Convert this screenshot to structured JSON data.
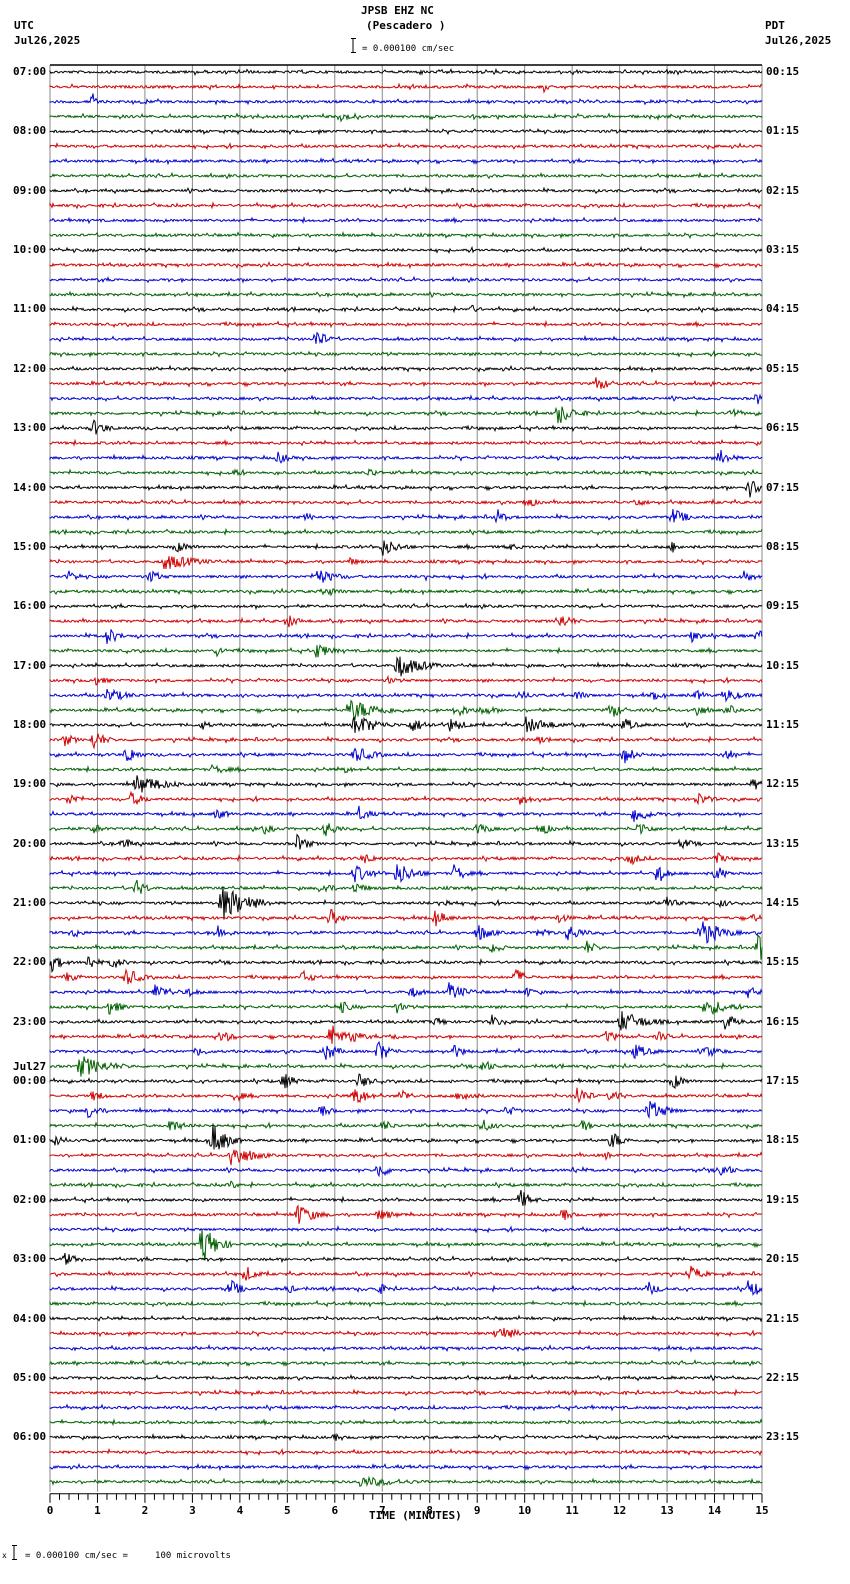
{
  "header": {
    "station": "JPSB EHZ NC",
    "location": "(Pescadero )",
    "scale_text": "= 0.000100 cm/sec",
    "left_tz": "UTC",
    "left_date": "Jul26,2025",
    "right_tz": "PDT",
    "right_date": "Jul26,2025"
  },
  "footer": {
    "scale_note": "= 0.000100 cm/sec =     100 microvolts",
    "scale_prefix": "x"
  },
  "chart_data": {
    "type": "line",
    "title": "JPSB EHZ NC (Pescadero )",
    "xlabel": "TIME (MINUTES)",
    "ylabel": "",
    "xlim": [
      0,
      15
    ],
    "x_ticks": [
      "0",
      "1",
      "2",
      "3",
      "4",
      "5",
      "6",
      "7",
      "8",
      "9",
      "10",
      "11",
      "12",
      "13",
      "14",
      "15"
    ],
    "trace_colors": [
      "#000000",
      "#d00000",
      "#0000d0",
      "#006000"
    ],
    "traces_per_hour": 4,
    "num_traces": 96,
    "left_hour_labels": [
      "07:00",
      "08:00",
      "09:00",
      "10:00",
      "11:00",
      "12:00",
      "13:00",
      "14:00",
      "15:00",
      "16:00",
      "17:00",
      "18:00",
      "19:00",
      "20:00",
      "21:00",
      "22:00",
      "23:00",
      "00:00",
      "01:00",
      "02:00",
      "03:00",
      "04:00",
      "05:00",
      "06:00"
    ],
    "left_date_change": {
      "label": "Jul27",
      "at_index": 17
    },
    "right_hour_labels": [
      "00:15",
      "01:15",
      "02:15",
      "03:15",
      "04:15",
      "05:15",
      "06:15",
      "07:15",
      "08:15",
      "09:15",
      "10:15",
      "11:15",
      "12:15",
      "13:15",
      "14:15",
      "15:15",
      "16:15",
      "17:15",
      "18:15",
      "19:15",
      "20:15",
      "21:15",
      "22:15",
      "23:15"
    ],
    "events": [
      [
        1,
        10.4,
        0.1,
        6
      ],
      [
        2,
        0.9,
        0.05,
        10
      ],
      [
        3,
        6.1,
        0.3,
        6
      ],
      [
        16,
        8.8,
        0.25,
        7
      ],
      [
        18,
        5.6,
        0.25,
        12
      ],
      [
        21,
        11.5,
        0.4,
        8
      ],
      [
        22,
        14.9,
        0.2,
        8
      ],
      [
        23,
        10.7,
        0.5,
        12
      ],
      [
        23,
        14.3,
        0.3,
        7
      ],
      [
        24,
        0.9,
        0.4,
        9
      ],
      [
        26,
        4.8,
        0.3,
        7
      ],
      [
        26,
        14.1,
        0.3,
        10
      ],
      [
        27,
        3.8,
        0.3,
        6
      ],
      [
        27,
        6.7,
        0.3,
        6
      ],
      [
        28,
        14.7,
        0.4,
        12
      ],
      [
        29,
        10.0,
        0.3,
        8
      ],
      [
        29,
        12.3,
        0.3,
        6
      ],
      [
        30,
        5.4,
        0.2,
        5
      ],
      [
        30,
        9.4,
        0.2,
        10
      ],
      [
        30,
        13.1,
        0.4,
        10
      ],
      [
        32,
        2.6,
        0.5,
        7
      ],
      [
        32,
        7.0,
        0.5,
        10
      ],
      [
        32,
        9.6,
        0.4,
        5
      ],
      [
        32,
        13.1,
        0.2,
        7
      ],
      [
        33,
        2.4,
        1.0,
        9
      ],
      [
        33,
        6.3,
        0.3,
        5
      ],
      [
        34,
        0.4,
        0.3,
        6
      ],
      [
        34,
        2.1,
        0.3,
        8
      ],
      [
        34,
        5.6,
        0.6,
        9
      ],
      [
        34,
        7.9,
        0.2,
        5
      ],
      [
        34,
        14.6,
        0.3,
        8
      ],
      [
        35,
        5.8,
        0.4,
        6
      ],
      [
        37,
        5.0,
        0.3,
        8
      ],
      [
        37,
        10.7,
        0.4,
        9
      ],
      [
        38,
        1.2,
        0.3,
        10
      ],
      [
        38,
        13.5,
        0.3,
        7
      ],
      [
        38,
        14.9,
        0.2,
        8
      ],
      [
        39,
        3.5,
        0.3,
        6
      ],
      [
        39,
        5.6,
        0.4,
        9
      ],
      [
        40,
        7.3,
        0.7,
        14
      ],
      [
        41,
        0.9,
        0.4,
        6
      ],
      [
        41,
        7.1,
        0.2,
        5
      ],
      [
        42,
        1.2,
        0.6,
        8
      ],
      [
        42,
        9.9,
        0.3,
        6
      ],
      [
        42,
        11.1,
        0.2,
        7
      ],
      [
        42,
        12.7,
        0.3,
        5
      ],
      [
        42,
        13.6,
        0.3,
        6
      ],
      [
        42,
        14.2,
        0.5,
        8
      ],
      [
        43,
        6.3,
        1.0,
        12
      ],
      [
        43,
        8.5,
        0.5,
        8
      ],
      [
        43,
        9.1,
        0.4,
        6
      ],
      [
        43,
        11.8,
        0.3,
        10
      ],
      [
        43,
        13.6,
        0.3,
        8
      ],
      [
        43,
        14.3,
        0.2,
        6
      ],
      [
        44,
        3.2,
        0.2,
        6
      ],
      [
        44,
        6.4,
        0.7,
        12
      ],
      [
        44,
        7.6,
        0.5,
        8
      ],
      [
        44,
        8.4,
        0.5,
        8
      ],
      [
        44,
        10.0,
        0.8,
        9
      ],
      [
        44,
        12.1,
        0.3,
        8
      ],
      [
        45,
        0.3,
        0.3,
        7
      ],
      [
        45,
        0.9,
        0.3,
        12
      ],
      [
        45,
        10.3,
        0.2,
        5
      ],
      [
        46,
        1.6,
        0.3,
        11
      ],
      [
        46,
        6.4,
        0.6,
        9
      ],
      [
        46,
        12.1,
        0.3,
        10
      ],
      [
        46,
        14.2,
        0.3,
        8
      ],
      [
        47,
        3.4,
        0.6,
        5
      ],
      [
        47,
        6.2,
        0.2,
        5
      ],
      [
        48,
        1.8,
        0.9,
        11
      ],
      [
        48,
        14.8,
        0.3,
        7
      ],
      [
        49,
        0.4,
        0.3,
        7
      ],
      [
        49,
        1.7,
        0.4,
        8
      ],
      [
        49,
        9.9,
        0.3,
        7
      ],
      [
        49,
        13.6,
        0.4,
        8
      ],
      [
        50,
        3.5,
        0.3,
        7
      ],
      [
        50,
        6.5,
        0.3,
        9
      ],
      [
        50,
        12.3,
        0.4,
        11
      ],
      [
        51,
        0.9,
        0.3,
        6
      ],
      [
        51,
        4.5,
        0.3,
        6
      ],
      [
        51,
        5.8,
        0.3,
        10
      ],
      [
        51,
        9.0,
        0.3,
        8
      ],
      [
        51,
        10.3,
        0.3,
        9
      ],
      [
        51,
        12.4,
        0.3,
        9
      ],
      [
        52,
        1.5,
        0.3,
        8
      ],
      [
        52,
        5.2,
        0.3,
        10
      ],
      [
        52,
        13.3,
        0.3,
        7
      ],
      [
        53,
        6.6,
        0.4,
        6
      ],
      [
        53,
        12.2,
        0.3,
        8
      ],
      [
        53,
        14.0,
        0.3,
        8
      ],
      [
        54,
        6.4,
        0.5,
        10
      ],
      [
        54,
        7.3,
        0.5,
        13
      ],
      [
        54,
        8.5,
        0.3,
        10
      ],
      [
        54,
        12.8,
        0.2,
        14
      ],
      [
        54,
        14.0,
        0.3,
        10
      ],
      [
        55,
        1.8,
        0.3,
        10
      ],
      [
        55,
        5.7,
        0.3,
        8
      ],
      [
        55,
        6.4,
        0.3,
        8
      ],
      [
        56,
        3.6,
        0.8,
        20
      ],
      [
        56,
        8.2,
        0.4,
        6
      ],
      [
        56,
        12.9,
        0.3,
        10
      ],
      [
        56,
        14.1,
        0.3,
        5
      ],
      [
        57,
        5.9,
        0.3,
        10
      ],
      [
        57,
        8.1,
        0.3,
        10
      ],
      [
        57,
        10.7,
        0.3,
        6
      ],
      [
        57,
        14.8,
        0.3,
        5
      ],
      [
        58,
        0.5,
        0.2,
        7
      ],
      [
        58,
        3.5,
        0.3,
        10
      ],
      [
        58,
        9.0,
        0.4,
        10
      ],
      [
        58,
        10.3,
        0.3,
        7
      ],
      [
        58,
        10.9,
        0.4,
        10
      ],
      [
        58,
        13.7,
        0.6,
        15
      ],
      [
        59,
        9.3,
        0.3,
        7
      ],
      [
        59,
        11.3,
        0.3,
        8
      ],
      [
        59,
        14.9,
        0.3,
        18
      ],
      [
        60,
        0.0,
        0.3,
        11
      ],
      [
        60,
        0.8,
        0.2,
        10
      ],
      [
        60,
        1.3,
        0.3,
        8
      ],
      [
        61,
        0.3,
        0.3,
        7
      ],
      [
        61,
        1.6,
        0.4,
        10
      ],
      [
        61,
        5.3,
        0.3,
        8
      ],
      [
        61,
        9.8,
        0.3,
        10
      ],
      [
        62,
        2.2,
        0.5,
        9
      ],
      [
        62,
        2.9,
        0.3,
        6
      ],
      [
        62,
        7.6,
        0.3,
        7
      ],
      [
        62,
        8.4,
        0.5,
        10
      ],
      [
        62,
        10.0,
        0.3,
        6
      ],
      [
        62,
        14.7,
        0.3,
        7
      ],
      [
        63,
        1.2,
        0.4,
        9
      ],
      [
        63,
        6.1,
        0.3,
        8
      ],
      [
        63,
        7.3,
        0.2,
        7
      ],
      [
        63,
        13.8,
        0.7,
        10
      ],
      [
        64,
        8.1,
        0.3,
        6
      ],
      [
        64,
        9.3,
        0.2,
        8
      ],
      [
        64,
        12.0,
        0.8,
        12
      ],
      [
        64,
        14.2,
        0.4,
        9
      ],
      [
        65,
        3.6,
        0.3,
        8
      ],
      [
        65,
        5.9,
        0.3,
        16
      ],
      [
        65,
        6.3,
        0.3,
        10
      ],
      [
        65,
        7.2,
        0.2,
        6
      ],
      [
        65,
        11.7,
        0.4,
        7
      ],
      [
        65,
        12.8,
        0.3,
        6
      ],
      [
        66,
        3.1,
        0.3,
        6
      ],
      [
        66,
        5.8,
        0.3,
        11
      ],
      [
        66,
        6.9,
        0.3,
        13
      ],
      [
        66,
        8.5,
        0.3,
        8
      ],
      [
        66,
        12.3,
        0.5,
        8
      ],
      [
        66,
        13.8,
        0.5,
        7
      ],
      [
        67,
        0.6,
        0.9,
        12
      ],
      [
        67,
        9.1,
        0.3,
        8
      ],
      [
        68,
        4.9,
        0.3,
        10
      ],
      [
        68,
        6.5,
        0.3,
        9
      ],
      [
        68,
        13.1,
        0.3,
        10
      ],
      [
        69,
        0.9,
        0.3,
        7
      ],
      [
        69,
        3.9,
        0.2,
        8
      ],
      [
        69,
        6.4,
        0.3,
        13
      ],
      [
        69,
        7.4,
        0.2,
        9
      ],
      [
        69,
        8.6,
        0.5,
        7
      ],
      [
        69,
        11.1,
        0.3,
        12
      ],
      [
        69,
        11.8,
        0.3,
        8
      ],
      [
        70,
        0.8,
        0.3,
        9
      ],
      [
        70,
        5.7,
        0.3,
        7
      ],
      [
        70,
        9.6,
        0.3,
        7
      ],
      [
        70,
        12.6,
        0.5,
        13
      ],
      [
        71,
        2.5,
        0.4,
        8
      ],
      [
        71,
        7.0,
        0.3,
        7
      ],
      [
        71,
        9.1,
        0.3,
        8
      ],
      [
        71,
        11.2,
        0.3,
        7
      ],
      [
        72,
        0.1,
        0.2,
        7
      ],
      [
        72,
        3.4,
        0.4,
        20
      ],
      [
        72,
        11.8,
        0.3,
        12
      ],
      [
        73,
        3.8,
        0.6,
        14
      ],
      [
        73,
        11.7,
        0.2,
        5
      ],
      [
        74,
        6.9,
        0.3,
        10
      ],
      [
        74,
        11.0,
        0.2,
        5
      ],
      [
        74,
        14.1,
        0.3,
        10
      ],
      [
        75,
        3.8,
        0.2,
        5
      ],
      [
        76,
        9.9,
        0.3,
        11
      ],
      [
        77,
        5.2,
        0.5,
        12
      ],
      [
        77,
        6.9,
        0.6,
        6
      ],
      [
        77,
        10.8,
        0.2,
        8
      ],
      [
        79,
        3.2,
        0.4,
        22
      ],
      [
        80,
        0.3,
        0.3,
        8
      ],
      [
        81,
        4.1,
        0.3,
        10
      ],
      [
        81,
        13.5,
        0.3,
        9
      ],
      [
        82,
        3.8,
        0.3,
        10
      ],
      [
        82,
        5.0,
        0.2,
        6
      ],
      [
        82,
        6.9,
        0.3,
        7
      ],
      [
        82,
        12.6,
        0.3,
        8
      ],
      [
        82,
        14.7,
        0.4,
        11
      ],
      [
        85,
        9.4,
        0.6,
        9
      ],
      [
        92,
        6.0,
        0.1,
        5
      ],
      [
        95,
        6.5,
        1.5,
        6
      ]
    ]
  }
}
